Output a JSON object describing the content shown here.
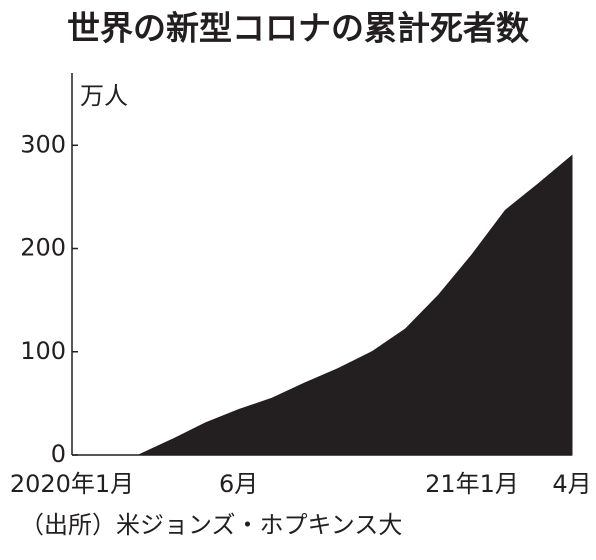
{
  "chart_data": {
    "type": "area",
    "title": "世界の新型コロナの累計死者数",
    "y_label": "万人",
    "source": "（出所）米ジョンズ・ホプキンス大",
    "categories": [
      "2020年1月",
      null,
      null,
      null,
      null,
      "6月",
      null,
      null,
      null,
      null,
      null,
      null,
      "21年1月",
      null,
      null,
      "4月"
    ],
    "values": [
      0,
      0,
      0,
      15,
      31,
      44,
      55,
      70,
      84,
      100,
      122,
      155,
      194,
      237,
      263,
      290
    ],
    "color": "#231f20",
    "ylim": [
      0,
      370
    ],
    "yticks": [
      0,
      100,
      200,
      300
    ]
  }
}
